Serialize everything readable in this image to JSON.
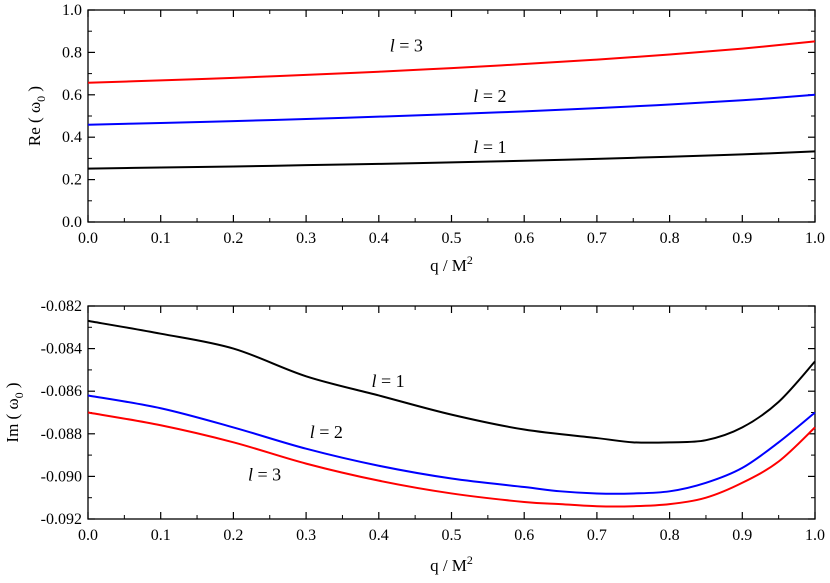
{
  "chart_data": [
    {
      "type": "line",
      "xlabel": "q / M",
      "xlabel_sup": "2",
      "ylabel_prefix": "Re ( ω",
      "ylabel_sub": "0",
      "ylabel_suffix": " )",
      "xlim": [
        0.0,
        1.0
      ],
      "ylim": [
        0.0,
        1.0
      ],
      "x_ticks": [
        "0.0",
        "0.1",
        "0.2",
        "0.3",
        "0.4",
        "0.5",
        "0.6",
        "0.7",
        "0.8",
        "0.9",
        "1.0"
      ],
      "y_ticks": [
        "0.0",
        "0.2",
        "0.4",
        "0.6",
        "0.8",
        "1.0"
      ],
      "grid": false,
      "series": [
        {
          "name": "l = 1",
          "label_italic": "l",
          "label_rest": " = 1",
          "color": "#000000",
          "label_x": 0.53,
          "label_y": 0.325,
          "x": [
            0.0,
            0.1,
            0.2,
            0.3,
            0.4,
            0.5,
            0.6,
            0.7,
            0.8,
            0.9,
            1.0
          ],
          "y": [
            0.252,
            0.257,
            0.262,
            0.268,
            0.274,
            0.281,
            0.289,
            0.298,
            0.308,
            0.319,
            0.333
          ]
        },
        {
          "name": "l = 2",
          "label_italic": "l",
          "label_rest": " = 2",
          "color": "#0000ff",
          "label_x": 0.53,
          "label_y": 0.565,
          "x": [
            0.0,
            0.1,
            0.2,
            0.3,
            0.4,
            0.5,
            0.6,
            0.7,
            0.8,
            0.9,
            1.0
          ],
          "y": [
            0.459,
            0.467,
            0.476,
            0.486,
            0.497,
            0.509,
            0.522,
            0.537,
            0.554,
            0.574,
            0.6
          ]
        },
        {
          "name": "l = 3",
          "label_italic": "l",
          "label_rest": " = 3",
          "color": "#ff0000",
          "label_x": 0.415,
          "label_y": 0.805,
          "x": [
            0.0,
            0.1,
            0.2,
            0.3,
            0.4,
            0.5,
            0.6,
            0.7,
            0.8,
            0.9,
            1.0
          ],
          "y": [
            0.657,
            0.668,
            0.68,
            0.694,
            0.709,
            0.726,
            0.745,
            0.766,
            0.79,
            0.818,
            0.852
          ]
        }
      ]
    },
    {
      "type": "line",
      "xlabel": "q / M",
      "xlabel_sup": "2",
      "ylabel_prefix": "Im ( ω",
      "ylabel_sub": "0",
      "ylabel_suffix": " )",
      "xlim": [
        0.0,
        1.0
      ],
      "ylim": [
        -0.092,
        -0.082
      ],
      "x_ticks": [
        "0.0",
        "0.1",
        "0.2",
        "0.3",
        "0.4",
        "0.5",
        "0.6",
        "0.7",
        "0.8",
        "0.9",
        "1.0"
      ],
      "y_ticks": [
        "-0.092",
        "-0.090",
        "-0.088",
        "-0.086",
        "-0.084",
        "-0.082"
      ],
      "grid": false,
      "series": [
        {
          "name": "l = 1",
          "label_italic": "l",
          "label_rest": " = 1",
          "color": "#000000",
          "label_x": 0.39,
          "label_y": -0.0858,
          "x": [
            0.0,
            0.1,
            0.2,
            0.3,
            0.4,
            0.5,
            0.6,
            0.7,
            0.75,
            0.8,
            0.85,
            0.9,
            0.95,
            1.0
          ],
          "y": [
            -0.0827,
            -0.0833,
            -0.084,
            -0.0853,
            -0.0862,
            -0.0871,
            -0.0878,
            -0.0882,
            -0.0884,
            -0.0884,
            -0.0883,
            -0.0877,
            -0.0865,
            -0.0846
          ]
        },
        {
          "name": "l = 2",
          "label_italic": "l",
          "label_rest": " = 2",
          "color": "#0000ff",
          "label_x": 0.305,
          "label_y": -0.0882,
          "x": [
            0.0,
            0.1,
            0.2,
            0.3,
            0.4,
            0.5,
            0.6,
            0.65,
            0.7,
            0.75,
            0.8,
            0.85,
            0.9,
            0.95,
            1.0
          ],
          "y": [
            -0.0862,
            -0.0868,
            -0.0877,
            -0.0887,
            -0.0895,
            -0.0901,
            -0.0905,
            -0.0907,
            -0.0908,
            -0.0908,
            -0.0907,
            -0.0903,
            -0.0896,
            -0.0884,
            -0.087
          ]
        },
        {
          "name": "l = 3",
          "label_italic": "l",
          "label_rest": " = 3",
          "color": "#ff0000",
          "label_x": 0.22,
          "label_y": -0.0902,
          "x": [
            0.0,
            0.1,
            0.2,
            0.3,
            0.4,
            0.5,
            0.6,
            0.65,
            0.7,
            0.75,
            0.8,
            0.85,
            0.9,
            0.95,
            1.0
          ],
          "y": [
            -0.087,
            -0.0876,
            -0.0884,
            -0.0894,
            -0.0902,
            -0.0908,
            -0.0912,
            -0.0913,
            -0.0914,
            -0.0914,
            -0.0913,
            -0.091,
            -0.0903,
            -0.0893,
            -0.0877
          ]
        }
      ]
    }
  ]
}
